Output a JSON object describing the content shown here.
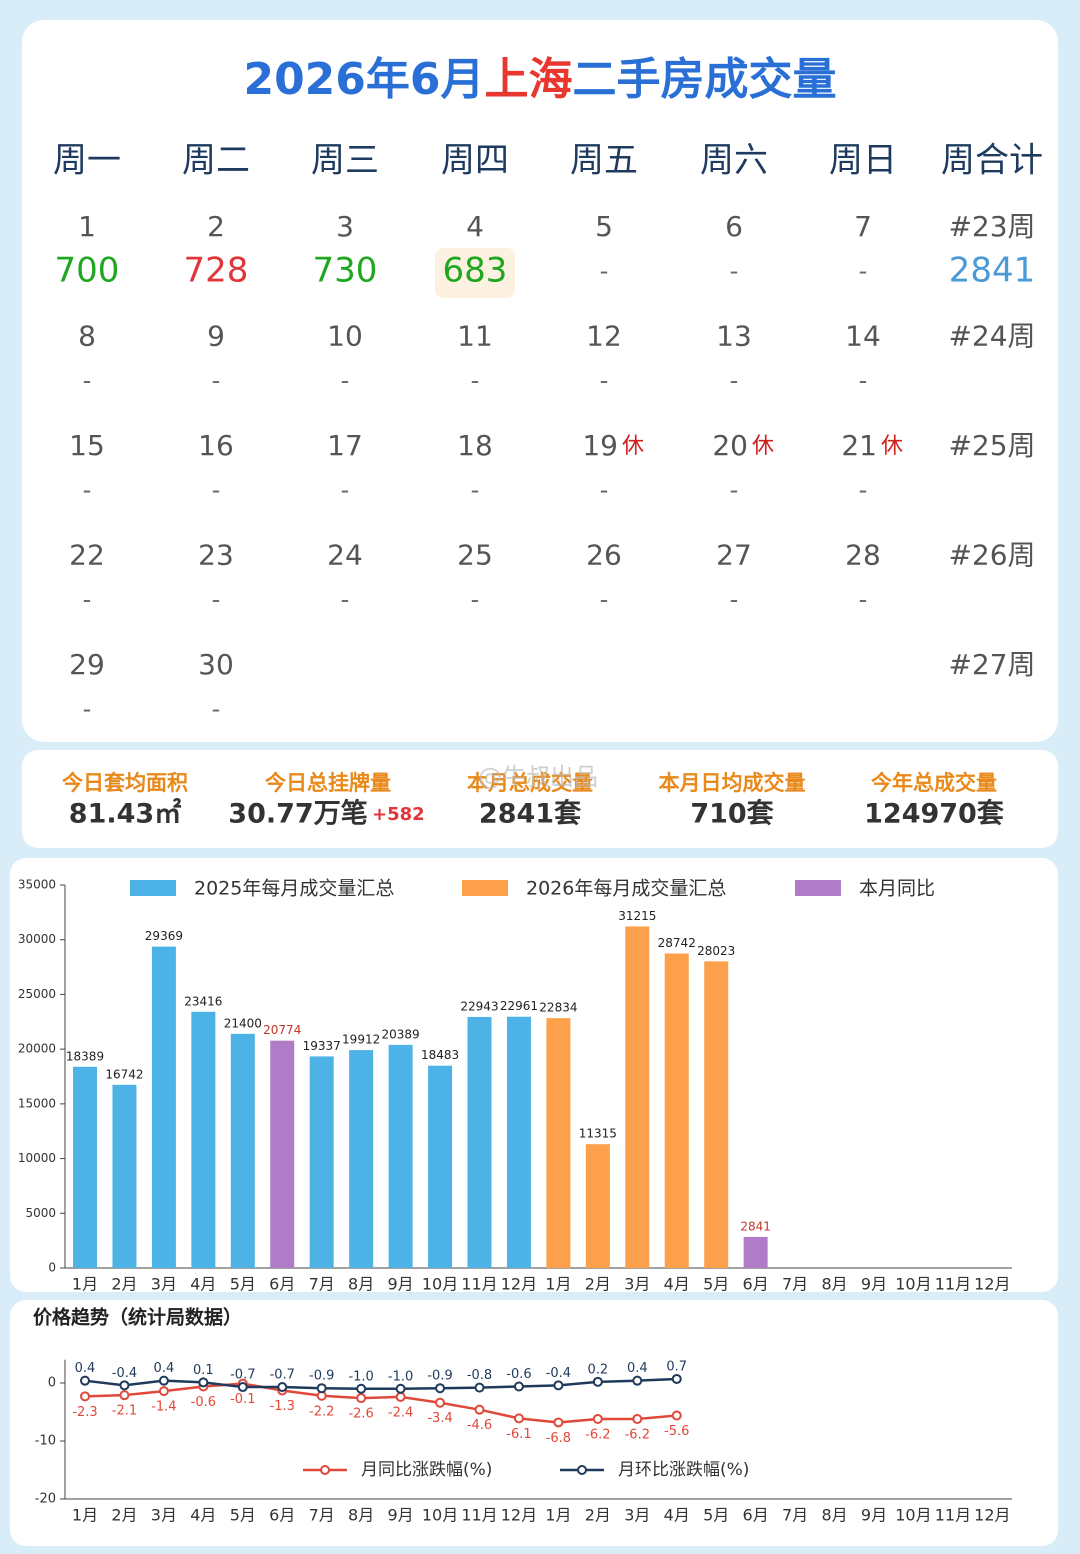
{
  "header": {
    "title_parts": [
      "2026年6月",
      "上海",
      "二手房成交量"
    ]
  },
  "calendar": {
    "headers": [
      "周一",
      "周二",
      "周三",
      "周四",
      "周五",
      "周六",
      "周日",
      "周合计"
    ],
    "weeks": [
      {
        "days": [
          {
            "day": 1,
            "value": 700,
            "color": "#1fa81f"
          },
          {
            "day": 2,
            "value": 728,
            "color": "#e0353a"
          },
          {
            "day": 3,
            "value": 730,
            "color": "#1fa81f"
          },
          {
            "day": 4,
            "value": 683,
            "color": "#1fa81f",
            "highlight": true
          },
          {
            "day": 5,
            "value": "-"
          },
          {
            "day": 6,
            "value": "-"
          },
          {
            "day": 7,
            "value": "-"
          }
        ],
        "label": "#23周",
        "total": 2841
      },
      {
        "days": [
          {
            "day": 8,
            "value": "-"
          },
          {
            "day": 9,
            "value": "-"
          },
          {
            "day": 10,
            "value": "-"
          },
          {
            "day": 11,
            "value": "-"
          },
          {
            "day": 12,
            "value": "-"
          },
          {
            "day": 13,
            "value": "-"
          },
          {
            "day": 14,
            "value": "-"
          }
        ],
        "label": "#24周"
      },
      {
        "days": [
          {
            "day": 15,
            "value": "-"
          },
          {
            "day": 16,
            "value": "-"
          },
          {
            "day": 17,
            "value": "-"
          },
          {
            "day": 18,
            "value": "-"
          },
          {
            "day": 19,
            "note": "休",
            "value": "-"
          },
          {
            "day": 20,
            "note": "休",
            "value": "-"
          },
          {
            "day": 21,
            "note": "休",
            "value": "-"
          }
        ],
        "label": "#25周"
      },
      {
        "days": [
          {
            "day": 22,
            "value": "-"
          },
          {
            "day": 23,
            "value": "-"
          },
          {
            "day": 24,
            "value": "-"
          },
          {
            "day": 25,
            "value": "-"
          },
          {
            "day": 26,
            "value": "-"
          },
          {
            "day": 27,
            "value": "-"
          },
          {
            "day": 28,
            "value": "-"
          }
        ],
        "label": "#26周"
      },
      {
        "days": [
          {
            "day": 29,
            "value": "-"
          },
          {
            "day": 30,
            "value": "-"
          }
        ],
        "label": "#27周"
      }
    ]
  },
  "stats": {
    "items": [
      {
        "label": "今日套均面积",
        "value": "81.43㎡"
      },
      {
        "label": "今日总挂牌量",
        "value": "30.77万笔",
        "extra": "+582"
      },
      {
        "label": "本月总成交量",
        "value": "2841套"
      },
      {
        "label": "本月日均成交量",
        "value": "710套"
      },
      {
        "label": "今年总成交量",
        "value": "124970套"
      }
    ],
    "watermark": "@牛叔出品"
  },
  "chart_data": [
    {
      "type": "bar",
      "categories": [
        "1月",
        "2月",
        "3月",
        "4月",
        "5月",
        "6月",
        "7月",
        "8月",
        "9月",
        "10月",
        "11月",
        "12月",
        "1月",
        "2月",
        "3月",
        "4月",
        "5月",
        "6月",
        "7月",
        "8月",
        "9月",
        "10月",
        "11月",
        "12月"
      ],
      "series": [
        {
          "name": "2025年每月成交量汇总",
          "color": "#4db3e6",
          "label_color": "#222",
          "values": [
            18389,
            16742,
            29369,
            23416,
            21400,
            null,
            19337,
            19912,
            20389,
            18483,
            22943,
            22961,
            null,
            null,
            null,
            null,
            null,
            null,
            null,
            null,
            null,
            null,
            null,
            null
          ]
        },
        {
          "name": "2026年每月成交量汇总",
          "color": "#fca04c",
          "label_color": "#222",
          "values": [
            null,
            null,
            null,
            null,
            null,
            null,
            null,
            null,
            null,
            null,
            null,
            null,
            22834,
            11315,
            31215,
            28742,
            28023,
            null,
            null,
            null,
            null,
            null,
            null,
            null
          ]
        },
        {
          "name": "本月同比",
          "color": "#b07cc8",
          "label_color": "#c0392b",
          "values": [
            null,
            null,
            null,
            null,
            null,
            20774,
            null,
            null,
            null,
            null,
            null,
            null,
            null,
            null,
            null,
            null,
            null,
            2841,
            null,
            null,
            null,
            null,
            null,
            null
          ]
        }
      ],
      "ylim": [
        0,
        35000
      ],
      "yticks": [
        0,
        5000,
        10000,
        15000,
        20000,
        25000,
        30000,
        35000
      ],
      "grid": false
    },
    {
      "type": "line",
      "title": "价格趋势（统计局数据）",
      "categories": [
        "1月",
        "2月",
        "3月",
        "4月",
        "5月",
        "6月",
        "7月",
        "8月",
        "9月",
        "10月",
        "11月",
        "12月",
        "1月",
        "2月",
        "3月",
        "4月",
        "5月",
        "6月",
        "7月",
        "8月",
        "9月",
        "10月",
        "11月",
        "12月"
      ],
      "series": [
        {
          "name": "月同比涨跌幅(%)",
          "color": "#e0493a",
          "label_side": "below",
          "values": [
            -2.3,
            -2.1,
            -1.4,
            -0.6,
            -0.1,
            -1.3,
            -2.2,
            -2.6,
            -2.4,
            -3.4,
            -4.6,
            -6.1,
            -6.8,
            -6.2,
            -6.2,
            -5.6,
            null,
            null,
            null,
            null,
            null,
            null,
            null,
            null
          ],
          "value_labels": [
            "-2.3",
            "-2.1",
            "-1.4",
            "-0.6",
            "-0.1",
            "-1.3",
            "-2.2",
            "-2.6",
            "-2.4",
            "-3.4",
            "-4.6",
            "-6.1",
            "-6.8",
            "-6.2",
            "-6.2",
            "-5.6",
            null,
            null,
            null,
            null,
            null,
            null,
            null,
            null
          ]
        },
        {
          "name": "月环比涨跌幅(%)",
          "color": "#1f3a5c",
          "label_side": "above",
          "values": [
            0.4,
            -0.4,
            0.4,
            0.1,
            -0.7,
            -0.7,
            -0.9,
            -1.0,
            -1.0,
            -0.9,
            -0.8,
            -0.6,
            -0.4,
            0.2,
            0.4,
            0.7,
            null,
            null,
            null,
            null,
            null,
            null,
            null,
            null
          ],
          "value_labels": [
            "0.4",
            "-0.4",
            "0.4",
            "0.1",
            "-0.7",
            "-0.7",
            "-0.9",
            "-1.0",
            "-1.0",
            "-0.9",
            "-0.8",
            "-0.6",
            "-0.4",
            "0.2",
            "0.4",
            "0.7",
            null,
            null,
            null,
            null,
            null,
            null,
            null,
            null
          ]
        }
      ],
      "ylim": [
        -20,
        4
      ],
      "yticks": [
        -20,
        -10,
        0
      ],
      "grid": false
    }
  ]
}
